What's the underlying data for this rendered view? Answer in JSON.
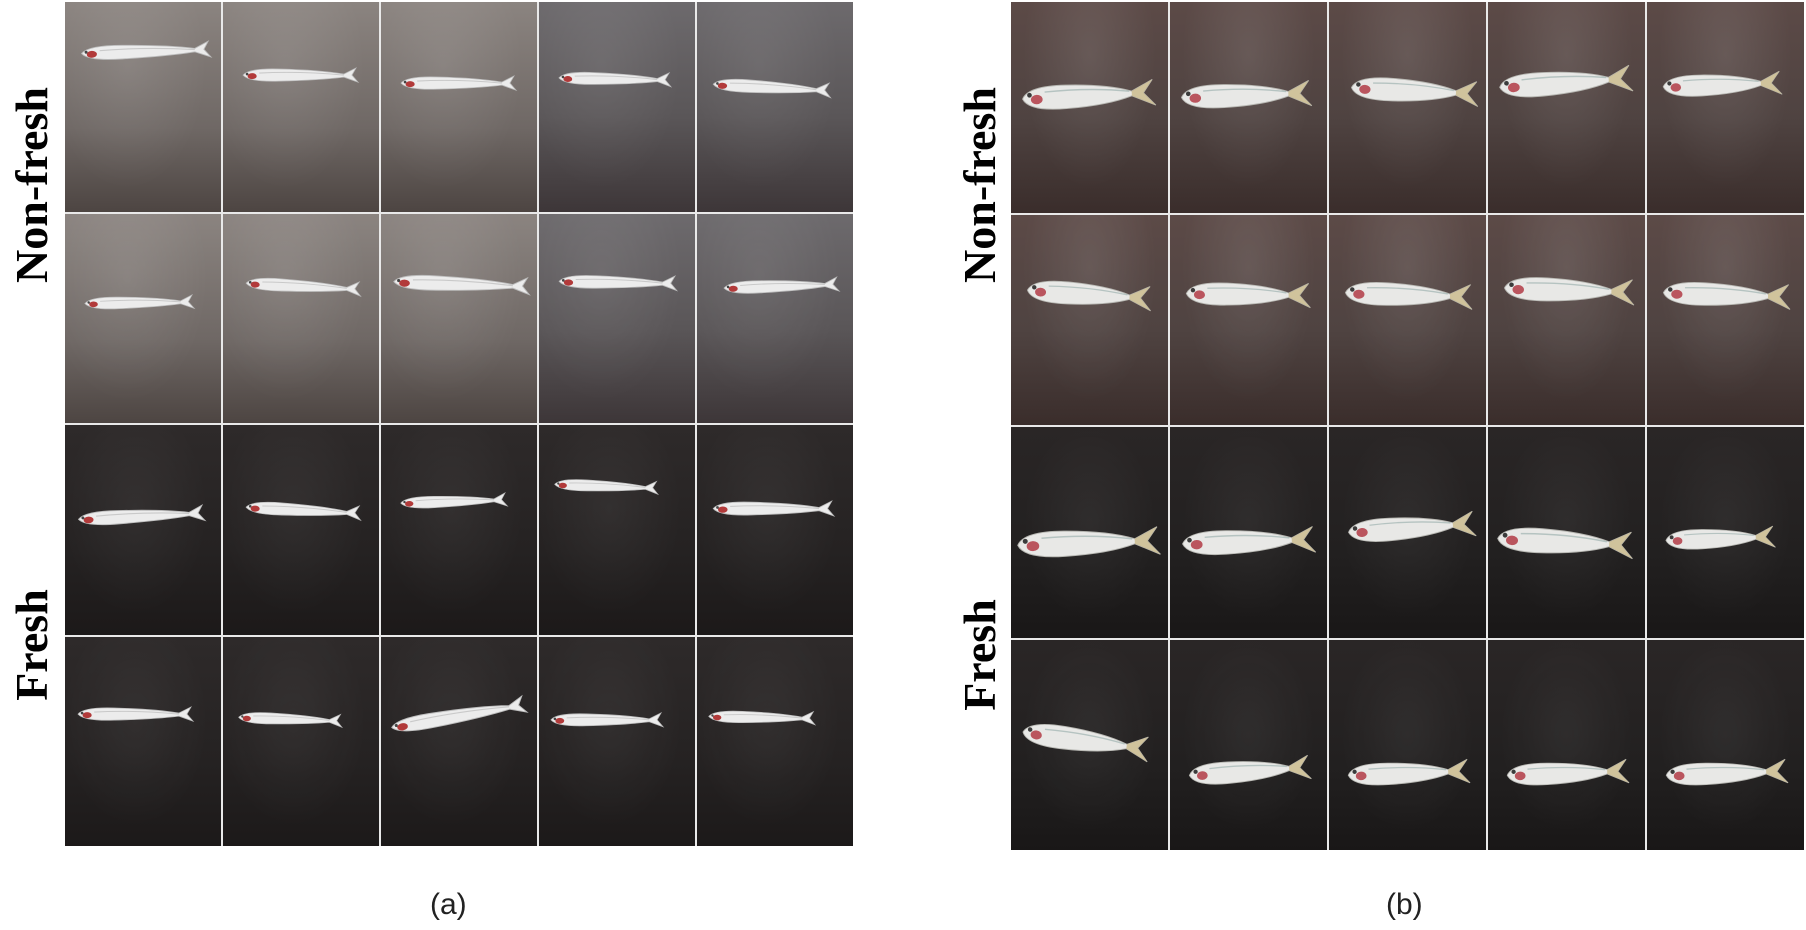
{
  "figure": {
    "panels": [
      {
        "id": "a",
        "caption": "(a)",
        "row_labels": [
          {
            "text": "Non-fresh",
            "rows": [
              0,
              1
            ]
          },
          {
            "text": "Fresh",
            "rows": [
              2,
              3
            ]
          }
        ],
        "rows": 4,
        "cols": 5
      },
      {
        "id": "b",
        "caption": "(b)",
        "row_labels": [
          {
            "text": "Non-fresh",
            "rows": [
              0,
              1
            ]
          },
          {
            "text": "Fresh",
            "rows": [
              2,
              3
            ]
          }
        ],
        "rows": 4,
        "cols": 5
      }
    ]
  }
}
